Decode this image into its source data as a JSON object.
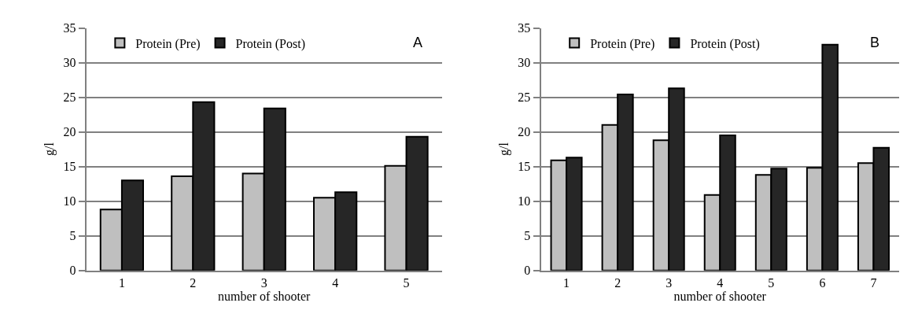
{
  "chart_data": [
    {
      "type": "bar",
      "xlabel": "number of shooter",
      "ylabel": "g/l",
      "categories": [
        "1",
        "2",
        "3",
        "4",
        "5"
      ],
      "series": [
        {
          "name": "Protein (Pre)",
          "color": "#bfbfbf",
          "values": [
            8.8,
            13.6,
            14.0,
            10.5,
            15.1
          ]
        },
        {
          "name": "Protein (Post)",
          "color": "#262626",
          "values": [
            13.0,
            24.3,
            23.4,
            11.3,
            19.3
          ]
        }
      ],
      "ylim": [
        0,
        35
      ],
      "yticks": [
        0,
        5,
        10,
        15,
        20,
        25,
        30,
        35
      ],
      "grid": "y",
      "legend": "top",
      "annotations": [
        "A"
      ]
    },
    {
      "type": "bar",
      "xlabel": "number of shooter",
      "ylabel": "g/l",
      "categories": [
        "1",
        "2",
        "3",
        "4",
        "5",
        "6",
        "7"
      ],
      "series": [
        {
          "name": "Protein (Pre)",
          "color": "#bfbfbf",
          "values": [
            15.9,
            21.0,
            18.8,
            10.9,
            13.8,
            14.8,
            15.5
          ]
        },
        {
          "name": "Protein (Post)",
          "color": "#262626",
          "values": [
            16.3,
            25.4,
            26.3,
            19.5,
            14.7,
            32.6,
            17.7
          ]
        }
      ],
      "ylim": [
        0,
        35
      ],
      "yticks": [
        0,
        5,
        10,
        15,
        20,
        25,
        30,
        35
      ],
      "grid": "y",
      "legend": "top",
      "annotations": [
        "B"
      ]
    }
  ]
}
